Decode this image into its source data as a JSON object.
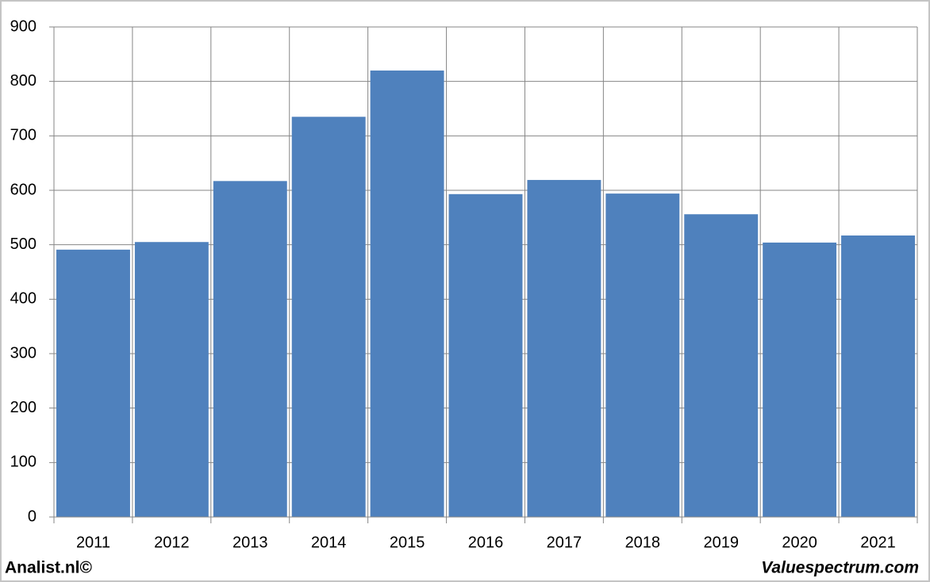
{
  "chart_data": {
    "type": "bar",
    "categories": [
      "2011",
      "2012",
      "2013",
      "2014",
      "2015",
      "2016",
      "2017",
      "2018",
      "2019",
      "2020",
      "2021"
    ],
    "values": [
      491,
      505,
      617,
      735,
      820,
      593,
      619,
      594,
      556,
      504,
      517
    ],
    "color": "#4f81bd",
    "ylim": [
      0,
      900
    ],
    "yticks": [
      0,
      100,
      200,
      300,
      400,
      500,
      600,
      700,
      800,
      900
    ],
    "grid": true
  },
  "footer": {
    "left": "Analist.nl©",
    "right": "Valuespectrum.com"
  }
}
